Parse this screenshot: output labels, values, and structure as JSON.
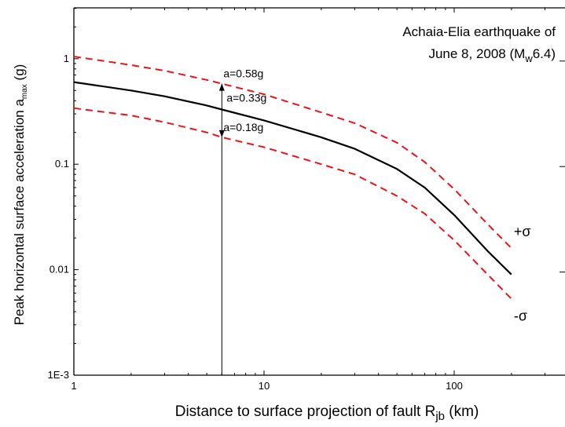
{
  "chart_data": {
    "type": "line",
    "title_line1": "Achaia-Elia earthquake of",
    "title_line2_prefix": "June 8, 2008 (M",
    "title_line2_sub": "w",
    "title_line2_suffix": "6.4)",
    "xlabel_prefix": "Distance to surface projection of fault R",
    "xlabel_sub": "jb",
    "xlabel_suffix": " (km)",
    "ylabel_prefix": "Peak horizontal surface acceleration a",
    "ylabel_sub": "max",
    "ylabel_suffix": " (g)",
    "x_scale": "log",
    "y_scale": "log",
    "xlim": [
      1,
      400
    ],
    "ylim": [
      0.001,
      3
    ],
    "x_ticks": [
      {
        "value": 1,
        "label": "1"
      },
      {
        "value": 10,
        "label": "10"
      },
      {
        "value": 100,
        "label": "100"
      }
    ],
    "y_ticks": [
      {
        "value": 1,
        "label": "1"
      },
      {
        "value": 0.1,
        "label": "0.1"
      },
      {
        "value": 0.01,
        "label": "0.01"
      },
      {
        "value": 0.001,
        "label": "1E-3"
      }
    ],
    "series": [
      {
        "role": "median",
        "color": "#000000",
        "style": "solid",
        "points": [
          [
            1,
            0.6
          ],
          [
            2,
            0.5
          ],
          [
            3,
            0.44
          ],
          [
            5,
            0.36
          ],
          [
            6,
            0.33
          ],
          [
            10,
            0.26
          ],
          [
            20,
            0.18
          ],
          [
            30,
            0.14
          ],
          [
            50,
            0.09
          ],
          [
            70,
            0.06
          ],
          [
            100,
            0.033
          ],
          [
            150,
            0.015
          ],
          [
            200,
            0.009
          ]
        ]
      },
      {
        "role": "upper",
        "label": "+σ",
        "color": "#e8141b",
        "style": "dashed",
        "points": [
          [
            1,
            1.05
          ],
          [
            2,
            0.87
          ],
          [
            3,
            0.77
          ],
          [
            5,
            0.63
          ],
          [
            6,
            0.58
          ],
          [
            10,
            0.46
          ],
          [
            20,
            0.31
          ],
          [
            30,
            0.245
          ],
          [
            50,
            0.16
          ],
          [
            70,
            0.105
          ],
          [
            100,
            0.058
          ],
          [
            150,
            0.027
          ],
          [
            200,
            0.016
          ]
        ]
      },
      {
        "role": "lower",
        "label": "-σ",
        "color": "#e8141b",
        "style": "dashed",
        "points": [
          [
            1,
            0.34
          ],
          [
            2,
            0.29
          ],
          [
            3,
            0.25
          ],
          [
            5,
            0.2
          ],
          [
            6,
            0.18
          ],
          [
            10,
            0.145
          ],
          [
            20,
            0.1
          ],
          [
            30,
            0.08
          ],
          [
            50,
            0.05
          ],
          [
            70,
            0.034
          ],
          [
            100,
            0.019
          ],
          [
            150,
            0.009
          ],
          [
            200,
            0.0053
          ]
        ]
      }
    ],
    "annotations": [
      {
        "text": "a=0.58g",
        "x": 6,
        "y": 0.58
      },
      {
        "text": "a=0.33g",
        "x": 6,
        "y": 0.33
      },
      {
        "text": "a=0.18g",
        "x": 6,
        "y": 0.18
      }
    ],
    "vertical_marker_x": 6
  }
}
